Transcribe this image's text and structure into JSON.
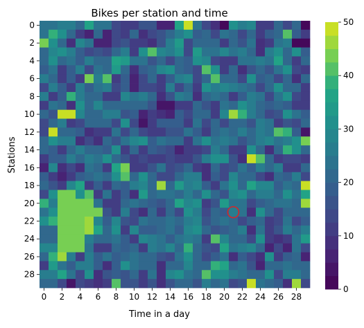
{
  "chart_data": {
    "type": "heatmap",
    "title": "Bikes per station and time",
    "xlabel": "Time in a day",
    "ylabel": "Stations",
    "x_tick_labels": [
      "0",
      "2",
      "4",
      "6",
      "8",
      "10",
      "12",
      "14",
      "16",
      "18",
      "20",
      "22",
      "24",
      "26",
      "28"
    ],
    "y_tick_labels": [
      "0",
      "2",
      "4",
      "6",
      "8",
      "10",
      "12",
      "14",
      "16",
      "18",
      "20",
      "22",
      "24",
      "26",
      "28"
    ],
    "colorbar": {
      "min": 0,
      "max": 50,
      "levels": 20,
      "tick_labels": [
        "0",
        "10",
        "20",
        "30",
        "40",
        "50"
      ]
    },
    "grid": false,
    "colormap": "viridis",
    "annotation": {
      "type": "circle",
      "color": "#d62728",
      "x": 21,
      "y": 21
    },
    "n_x": 30,
    "n_y": 30,
    "values": [
      [
        24,
        24,
        26,
        26,
        22,
        36,
        24,
        24,
        14,
        12,
        12,
        16,
        16,
        6,
        6,
        36,
        50,
        24,
        14,
        8,
        2,
        32,
        26,
        28,
        12,
        10,
        22,
        14,
        20,
        2
      ],
      [
        24,
        38,
        30,
        20,
        10,
        6,
        22,
        6,
        14,
        12,
        22,
        8,
        14,
        16,
        22,
        26,
        32,
        18,
        20,
        14,
        24,
        20,
        14,
        22,
        12,
        18,
        20,
        40,
        18,
        12
      ],
      [
        44,
        30,
        20,
        8,
        28,
        24,
        6,
        6,
        14,
        16,
        12,
        10,
        8,
        16,
        26,
        34,
        14,
        20,
        22,
        20,
        12,
        20,
        16,
        24,
        8,
        12,
        24,
        26,
        2,
        2
      ],
      [
        22,
        28,
        30,
        26,
        18,
        14,
        16,
        14,
        20,
        26,
        12,
        30,
        42,
        28,
        26,
        32,
        14,
        34,
        24,
        24,
        28,
        24,
        26,
        20,
        8,
        26,
        32,
        20,
        30,
        18
      ],
      [
        22,
        30,
        20,
        24,
        18,
        26,
        22,
        20,
        36,
        34,
        24,
        24,
        16,
        20,
        14,
        22,
        18,
        30,
        28,
        14,
        10,
        10,
        24,
        24,
        26,
        24,
        36,
        20,
        12,
        22
      ],
      [
        18,
        24,
        10,
        18,
        26,
        14,
        24,
        20,
        34,
        20,
        8,
        18,
        22,
        28,
        30,
        20,
        18,
        14,
        42,
        32,
        12,
        20,
        8,
        16,
        22,
        16,
        24,
        30,
        14,
        12
      ],
      [
        26,
        20,
        12,
        18,
        12,
        44,
        26,
        42,
        12,
        18,
        6,
        14,
        20,
        10,
        18,
        26,
        28,
        14,
        22,
        40,
        20,
        20,
        14,
        30,
        18,
        20,
        14,
        20,
        8,
        22
      ],
      [
        14,
        26,
        18,
        12,
        26,
        18,
        24,
        26,
        14,
        18,
        6,
        14,
        14,
        10,
        26,
        14,
        20,
        10,
        30,
        26,
        28,
        26,
        24,
        20,
        14,
        20,
        30,
        20,
        22,
        10
      ],
      [
        26,
        12,
        18,
        38,
        26,
        22,
        22,
        12,
        10,
        28,
        24,
        26,
        22,
        8,
        16,
        26,
        24,
        8,
        22,
        24,
        22,
        10,
        18,
        26,
        24,
        14,
        24,
        30,
        14,
        12
      ],
      [
        10,
        24,
        20,
        8,
        30,
        20,
        28,
        22,
        22,
        22,
        22,
        20,
        16,
        4,
        4,
        10,
        12,
        20,
        16,
        10,
        24,
        20,
        30,
        26,
        22,
        18,
        22,
        18,
        10,
        12
      ],
      [
        20,
        16,
        48,
        48,
        28,
        20,
        22,
        26,
        26,
        16,
        18,
        6,
        10,
        8,
        6,
        18,
        14,
        22,
        20,
        10,
        28,
        46,
        38,
        26,
        22,
        14,
        16,
        30,
        24,
        18
      ],
      [
        14,
        20,
        26,
        10,
        14,
        22,
        20,
        22,
        14,
        30,
        14,
        4,
        10,
        18,
        18,
        18,
        12,
        24,
        14,
        20,
        14,
        20,
        22,
        16,
        26,
        24,
        12,
        16,
        14,
        22
      ],
      [
        14,
        48,
        22,
        22,
        18,
        8,
        10,
        12,
        24,
        14,
        20,
        14,
        10,
        10,
        16,
        16,
        24,
        18,
        10,
        22,
        24,
        22,
        26,
        20,
        26,
        24,
        40,
        38,
        18,
        4
      ],
      [
        20,
        32,
        26,
        26,
        8,
        14,
        8,
        20,
        16,
        24,
        28,
        30,
        18,
        24,
        22,
        20,
        10,
        24,
        30,
        24,
        26,
        24,
        16,
        22,
        26,
        28,
        24,
        26,
        32,
        44
      ],
      [
        22,
        18,
        12,
        20,
        26,
        22,
        20,
        18,
        30,
        10,
        20,
        10,
        18,
        16,
        14,
        6,
        10,
        12,
        14,
        26,
        20,
        12,
        12,
        30,
        20,
        8,
        20,
        38,
        30,
        22
      ],
      [
        12,
        18,
        18,
        26,
        22,
        26,
        24,
        30,
        20,
        16,
        12,
        14,
        12,
        12,
        14,
        10,
        10,
        16,
        26,
        30,
        32,
        16,
        8,
        48,
        40,
        20,
        12,
        14,
        14,
        10
      ],
      [
        6,
        28,
        8,
        14,
        8,
        24,
        22,
        10,
        36,
        44,
        12,
        10,
        16,
        24,
        14,
        16,
        20,
        10,
        8,
        20,
        14,
        16,
        24,
        18,
        26,
        22,
        26,
        12,
        10,
        22
      ],
      [
        18,
        12,
        6,
        10,
        18,
        22,
        24,
        20,
        30,
        40,
        20,
        30,
        22,
        14,
        14,
        22,
        26,
        26,
        8,
        18,
        14,
        28,
        22,
        20,
        14,
        8,
        22,
        18,
        26,
        14
      ],
      [
        20,
        16,
        12,
        28,
        36,
        12,
        18,
        12,
        20,
        18,
        26,
        28,
        22,
        46,
        20,
        34,
        26,
        28,
        18,
        12,
        24,
        30,
        20,
        36,
        28,
        28,
        18,
        24,
        20,
        48
      ],
      [
        14,
        30,
        44,
        44,
        30,
        40,
        12,
        24,
        12,
        18,
        8,
        34,
        20,
        24,
        24,
        22,
        26,
        20,
        32,
        20,
        16,
        28,
        30,
        20,
        26,
        26,
        20,
        30,
        24,
        36
      ],
      [
        38,
        26,
        44,
        44,
        44,
        44,
        24,
        12,
        10,
        20,
        24,
        22,
        18,
        16,
        20,
        36,
        28,
        30,
        10,
        16,
        34,
        24,
        24,
        14,
        18,
        20,
        24,
        24,
        20,
        46
      ],
      [
        24,
        32,
        44,
        44,
        44,
        44,
        44,
        16,
        10,
        26,
        14,
        8,
        22,
        10,
        20,
        14,
        30,
        26,
        14,
        20,
        18,
        26,
        24,
        8,
        30,
        22,
        14,
        22,
        20,
        22
      ],
      [
        30,
        38,
        44,
        44,
        44,
        46,
        28,
        18,
        28,
        16,
        14,
        24,
        20,
        20,
        24,
        22,
        26,
        28,
        16,
        22,
        24,
        20,
        14,
        18,
        22,
        12,
        14,
        24,
        14,
        18
      ],
      [
        22,
        22,
        44,
        44,
        44,
        46,
        36,
        20,
        30,
        12,
        28,
        18,
        18,
        20,
        24,
        18,
        28,
        30,
        22,
        16,
        18,
        20,
        26,
        8,
        24,
        10,
        16,
        26,
        20,
        26
      ],
      [
        20,
        22,
        44,
        44,
        44,
        26,
        20,
        20,
        24,
        18,
        12,
        28,
        26,
        24,
        18,
        24,
        26,
        24,
        12,
        40,
        28,
        22,
        22,
        14,
        30,
        10,
        8,
        12,
        24,
        34
      ],
      [
        28,
        28,
        44,
        44,
        44,
        24,
        12,
        12,
        20,
        18,
        22,
        10,
        26,
        24,
        28,
        20,
        38,
        22,
        16,
        14,
        36,
        24,
        26,
        28,
        20,
        6,
        14,
        6,
        24,
        14
      ],
      [
        22,
        38,
        46,
        26,
        10,
        26,
        18,
        24,
        18,
        22,
        24,
        22,
        20,
        16,
        14,
        24,
        30,
        22,
        14,
        18,
        24,
        8,
        18,
        14,
        8,
        30,
        10,
        18,
        22,
        6
      ],
      [
        10,
        34,
        24,
        18,
        26,
        26,
        18,
        8,
        18,
        30,
        24,
        20,
        22,
        8,
        20,
        20,
        28,
        22,
        22,
        38,
        36,
        20,
        24,
        16,
        6,
        20,
        20,
        24,
        20,
        20
      ],
      [
        26,
        26,
        36,
        24,
        14,
        30,
        8,
        16,
        18,
        16,
        22,
        10,
        24,
        8,
        28,
        30,
        24,
        22,
        40,
        30,
        30,
        26,
        24,
        22,
        20,
        30,
        14,
        26,
        26,
        20
      ],
      [
        20,
        20,
        14,
        4,
        14,
        12,
        8,
        12,
        40,
        16,
        16,
        10,
        16,
        8,
        16,
        20,
        20,
        16,
        26,
        20,
        24,
        14,
        16,
        48,
        24,
        20,
        18,
        8,
        46,
        14
      ]
    ]
  }
}
